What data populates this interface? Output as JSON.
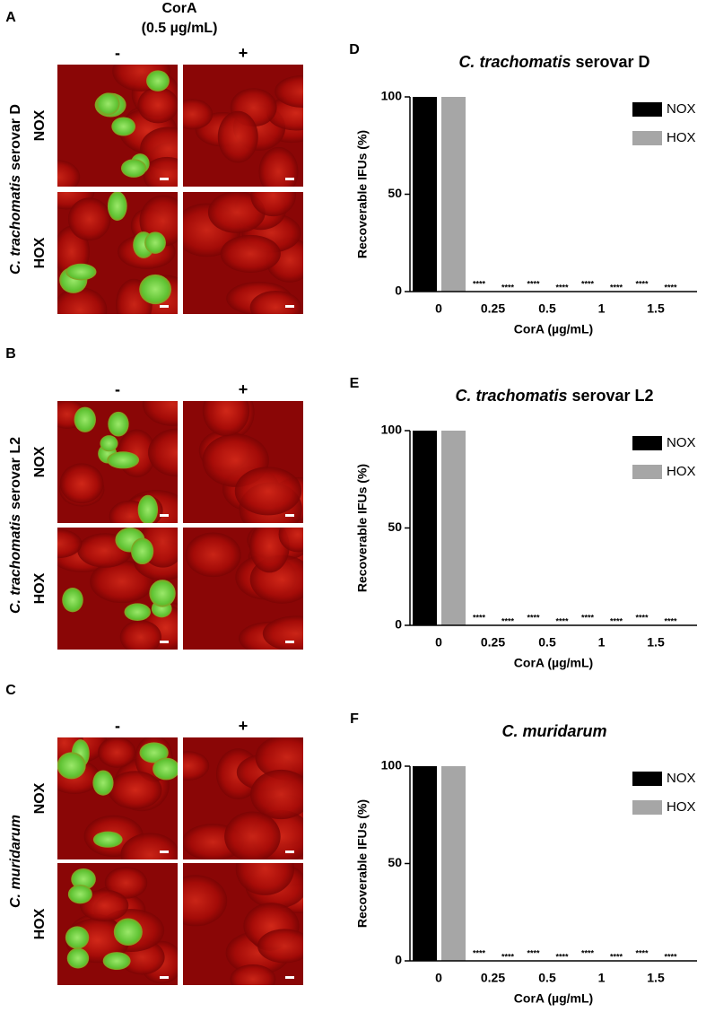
{
  "figure": {
    "header": [
      "CorA",
      "(0.5 µg/mL)"
    ],
    "panels": [
      {
        "letter": "A",
        "organism": {
          "italic": "C. trachomatis",
          "roman": "serovar D"
        },
        "columns": [
          "-",
          "+"
        ],
        "rows": [
          "NOX",
          "HOX"
        ]
      },
      {
        "letter": "B",
        "organism": {
          "italic": "C. trachomatis",
          "roman": "serovar L2"
        },
        "columns": [
          "-",
          "+"
        ],
        "rows": [
          "NOX",
          "HOX"
        ]
      },
      {
        "letter": "C",
        "organism": {
          "italic": "C. muridarum"
        },
        "columns": [
          "-",
          "+"
        ],
        "rows": [
          "NOX",
          "HOX"
        ]
      }
    ]
  },
  "chart_data": [
    {
      "type": "bar",
      "panel": "D",
      "title": {
        "italic": "C. trachomatis",
        "roman": "serovar D"
      },
      "categories": [
        "0",
        "0.25",
        "0.5",
        "1",
        "1.5"
      ],
      "series": [
        {
          "name": "NOX",
          "color": "#000000",
          "values": [
            100,
            0,
            0,
            0,
            0
          ],
          "significance": [
            null,
            "****",
            "****",
            "****",
            "****"
          ]
        },
        {
          "name": "HOX",
          "color": "#a6a6a6",
          "values": [
            100,
            0,
            0,
            0,
            0
          ],
          "significance": [
            null,
            "****",
            "****",
            "****",
            "****"
          ]
        }
      ],
      "ylim": [
        0,
        100
      ],
      "yticks": [
        0,
        50,
        100
      ],
      "ylabel": "Recoverable IFUs (%)",
      "xlabel": "CorA (µg/mL)",
      "legend": "upper right"
    },
    {
      "type": "bar",
      "panel": "E",
      "title": {
        "italic": "C. trachomatis",
        "roman": "serovar L2"
      },
      "categories": [
        "0",
        "0.25",
        "0.5",
        "1",
        "1.5"
      ],
      "series": [
        {
          "name": "NOX",
          "color": "#000000",
          "values": [
            100,
            0,
            0,
            0,
            0
          ],
          "significance": [
            null,
            "****",
            "****",
            "****",
            "****"
          ]
        },
        {
          "name": "HOX",
          "color": "#a6a6a6",
          "values": [
            100,
            0,
            0,
            0,
            0
          ],
          "significance": [
            null,
            "****",
            "****",
            "****",
            "****"
          ]
        }
      ],
      "ylim": [
        0,
        100
      ],
      "yticks": [
        0,
        50,
        100
      ],
      "ylabel": "Recoverable IFUs (%)",
      "xlabel": "CorA (µg/mL)",
      "legend": "upper right"
    },
    {
      "type": "bar",
      "panel": "F",
      "title": {
        "italic": "C. muridarum"
      },
      "categories": [
        "0",
        "0.25",
        "0.5",
        "1",
        "1.5"
      ],
      "series": [
        {
          "name": "NOX",
          "color": "#000000",
          "values": [
            100,
            0,
            0,
            0,
            0
          ],
          "significance": [
            null,
            "****",
            "****",
            "****",
            "****"
          ]
        },
        {
          "name": "HOX",
          "color": "#a6a6a6",
          "values": [
            100,
            0,
            0,
            0,
            0
          ],
          "significance": [
            null,
            "****",
            "****",
            "****",
            "****"
          ]
        }
      ],
      "ylim": [
        0,
        100
      ],
      "yticks": [
        0,
        50,
        100
      ],
      "ylabel": "Recoverable IFUs (%)",
      "xlabel": "CorA (µg/mL)",
      "legend": "upper right"
    }
  ]
}
